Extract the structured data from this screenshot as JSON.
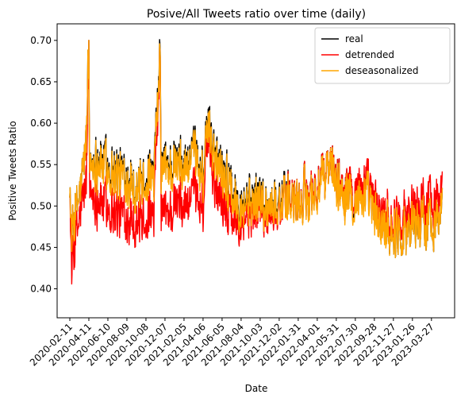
{
  "chart_data": {
    "type": "line",
    "title": "Posive/All Tweets ratio over time (daily)",
    "xlabel": "Date",
    "ylabel": "Positive Tweets Ratio",
    "x_start": "2020-02-11",
    "x_end": "2023-04-30",
    "xlim": [
      "2020-01-02",
      "2023-06-08"
    ],
    "ylim": [
      0.365,
      0.72
    ],
    "yticks": [
      0.4,
      0.45,
      0.5,
      0.55,
      0.6,
      0.65,
      0.7
    ],
    "ytick_labels": [
      "0.40",
      "0.45",
      "0.50",
      "0.55",
      "0.60",
      "0.65",
      "0.70"
    ],
    "xticks": [
      "2020-02-11",
      "2020-04-11",
      "2020-06-10",
      "2020-08-09",
      "2020-10-08",
      "2020-12-07",
      "2021-02-05",
      "2021-04-06",
      "2021-06-05",
      "2021-08-04",
      "2021-10-03",
      "2021-12-02",
      "2022-01-31",
      "2022-04-01",
      "2022-05-31",
      "2022-07-30",
      "2022-09-28",
      "2022-11-27",
      "2023-01-26",
      "2023-03-27"
    ],
    "grid": false,
    "legend": {
      "position": "top-right"
    },
    "series": [
      {
        "name": "real",
        "color": "#000000",
        "anchors": [
          [
            "2020-02-11",
            0.54
          ],
          [
            "2020-02-16",
            0.46
          ],
          [
            "2020-03-01",
            0.49
          ],
          [
            "2020-03-20",
            0.53
          ],
          [
            "2020-04-03",
            0.58
          ],
          [
            "2020-04-11",
            0.7
          ],
          [
            "2020-04-13",
            0.55
          ],
          [
            "2020-05-10",
            0.56
          ],
          [
            "2020-06-10",
            0.55
          ],
          [
            "2020-07-15",
            0.54
          ],
          [
            "2020-08-09",
            0.54
          ],
          [
            "2020-09-10",
            0.52
          ],
          [
            "2020-10-08",
            0.54
          ],
          [
            "2020-11-01",
            0.53
          ],
          [
            "2020-11-22",
            0.685
          ],
          [
            "2020-11-25",
            0.55
          ],
          [
            "2020-12-07",
            0.55
          ],
          [
            "2021-01-10",
            0.55
          ],
          [
            "2021-02-05",
            0.55
          ],
          [
            "2021-03-10",
            0.56
          ],
          [
            "2021-04-06",
            0.54
          ],
          [
            "2021-04-25",
            0.605
          ],
          [
            "2021-05-10",
            0.57
          ],
          [
            "2021-06-05",
            0.55
          ],
          [
            "2021-07-05",
            0.52
          ],
          [
            "2021-08-04",
            0.51
          ],
          [
            "2021-09-01",
            0.51
          ],
          [
            "2021-10-03",
            0.51
          ],
          [
            "2021-11-01",
            0.5
          ],
          [
            "2021-12-02",
            0.51
          ],
          [
            "2022-01-05",
            0.51
          ],
          [
            "2022-01-31",
            0.5
          ],
          [
            "2022-03-01",
            0.52
          ],
          [
            "2022-04-01",
            0.52
          ],
          [
            "2022-05-10",
            0.55
          ],
          [
            "2022-05-31",
            0.53
          ],
          [
            "2022-06-30",
            0.52
          ],
          [
            "2022-07-30",
            0.51
          ],
          [
            "2022-09-01",
            0.52
          ],
          [
            "2022-09-28",
            0.49
          ],
          [
            "2022-10-25",
            0.48
          ],
          [
            "2022-11-27",
            0.47
          ],
          [
            "2022-12-25",
            0.47
          ],
          [
            "2023-01-26",
            0.48
          ],
          [
            "2023-02-25",
            0.48
          ],
          [
            "2023-03-27",
            0.48
          ],
          [
            "2023-04-30",
            0.49
          ]
        ]
      },
      {
        "name": "detrended",
        "color": "#ff0000",
        "anchors": [
          [
            "2020-02-11",
            0.54
          ],
          [
            "2020-02-16",
            0.42
          ],
          [
            "2020-03-01",
            0.46
          ],
          [
            "2020-03-20",
            0.5
          ],
          [
            "2020-04-03",
            0.53
          ],
          [
            "2020-04-11",
            0.7
          ],
          [
            "2020-04-13",
            0.52
          ],
          [
            "2020-05-10",
            0.51
          ],
          [
            "2020-06-10",
            0.5
          ],
          [
            "2020-07-15",
            0.49
          ],
          [
            "2020-08-09",
            0.49
          ],
          [
            "2020-09-10",
            0.48
          ],
          [
            "2020-10-08",
            0.49
          ],
          [
            "2020-11-01",
            0.48
          ],
          [
            "2020-11-22",
            0.68
          ],
          [
            "2020-11-25",
            0.5
          ],
          [
            "2020-12-07",
            0.49
          ],
          [
            "2021-01-10",
            0.5
          ],
          [
            "2021-02-05",
            0.5
          ],
          [
            "2021-03-10",
            0.51
          ],
          [
            "2021-04-06",
            0.5
          ],
          [
            "2021-04-25",
            0.59
          ],
          [
            "2021-05-10",
            0.53
          ],
          [
            "2021-06-05",
            0.51
          ],
          [
            "2021-07-05",
            0.49
          ],
          [
            "2021-08-04",
            0.49
          ],
          [
            "2021-09-01",
            0.49
          ],
          [
            "2021-10-03",
            0.5
          ],
          [
            "2021-11-01",
            0.49
          ],
          [
            "2021-12-02",
            0.5
          ],
          [
            "2022-01-05",
            0.51
          ],
          [
            "2022-01-31",
            0.5
          ],
          [
            "2022-03-01",
            0.52
          ],
          [
            "2022-04-01",
            0.52
          ],
          [
            "2022-05-10",
            0.55
          ],
          [
            "2022-05-31",
            0.53
          ],
          [
            "2022-06-30",
            0.52
          ],
          [
            "2022-07-30",
            0.52
          ],
          [
            "2022-09-01",
            0.53
          ],
          [
            "2022-09-28",
            0.5
          ],
          [
            "2022-10-25",
            0.49
          ],
          [
            "2022-11-27",
            0.48
          ],
          [
            "2022-12-25",
            0.49
          ],
          [
            "2023-01-26",
            0.5
          ],
          [
            "2023-02-25",
            0.5
          ],
          [
            "2023-03-27",
            0.51
          ],
          [
            "2023-04-30",
            0.51
          ]
        ]
      },
      {
        "name": "deseasonalized",
        "color": "#ffa500",
        "anchors": [
          [
            "2020-02-11",
            0.54
          ],
          [
            "2020-02-16",
            0.46
          ],
          [
            "2020-03-01",
            0.49
          ],
          [
            "2020-03-20",
            0.53
          ],
          [
            "2020-04-03",
            0.58
          ],
          [
            "2020-04-11",
            0.7
          ],
          [
            "2020-04-13",
            0.55
          ],
          [
            "2020-05-10",
            0.555
          ],
          [
            "2020-06-10",
            0.545
          ],
          [
            "2020-07-15",
            0.535
          ],
          [
            "2020-08-09",
            0.535
          ],
          [
            "2020-09-10",
            0.52
          ],
          [
            "2020-10-08",
            0.535
          ],
          [
            "2020-11-01",
            0.525
          ],
          [
            "2020-11-22",
            0.68
          ],
          [
            "2020-11-25",
            0.545
          ],
          [
            "2020-12-07",
            0.545
          ],
          [
            "2021-01-10",
            0.545
          ],
          [
            "2021-02-05",
            0.545
          ],
          [
            "2021-03-10",
            0.555
          ],
          [
            "2021-04-06",
            0.535
          ],
          [
            "2021-04-25",
            0.6
          ],
          [
            "2021-05-10",
            0.565
          ],
          [
            "2021-06-05",
            0.545
          ],
          [
            "2021-07-05",
            0.515
          ],
          [
            "2021-08-04",
            0.505
          ],
          [
            "2021-09-01",
            0.505
          ],
          [
            "2021-10-03",
            0.505
          ],
          [
            "2021-11-01",
            0.5
          ],
          [
            "2021-12-02",
            0.505
          ],
          [
            "2022-01-05",
            0.505
          ],
          [
            "2022-01-31",
            0.5
          ],
          [
            "2022-03-01",
            0.515
          ],
          [
            "2022-04-01",
            0.515
          ],
          [
            "2022-05-10",
            0.55
          ],
          [
            "2022-05-31",
            0.525
          ],
          [
            "2022-06-30",
            0.515
          ],
          [
            "2022-07-30",
            0.505
          ],
          [
            "2022-09-01",
            0.515
          ],
          [
            "2022-09-28",
            0.485
          ],
          [
            "2022-10-25",
            0.475
          ],
          [
            "2022-11-27",
            0.47
          ],
          [
            "2022-12-25",
            0.47
          ],
          [
            "2023-01-26",
            0.48
          ],
          [
            "2023-02-25",
            0.48
          ],
          [
            "2023-03-27",
            0.48
          ],
          [
            "2023-04-30",
            0.49
          ]
        ]
      }
    ]
  }
}
